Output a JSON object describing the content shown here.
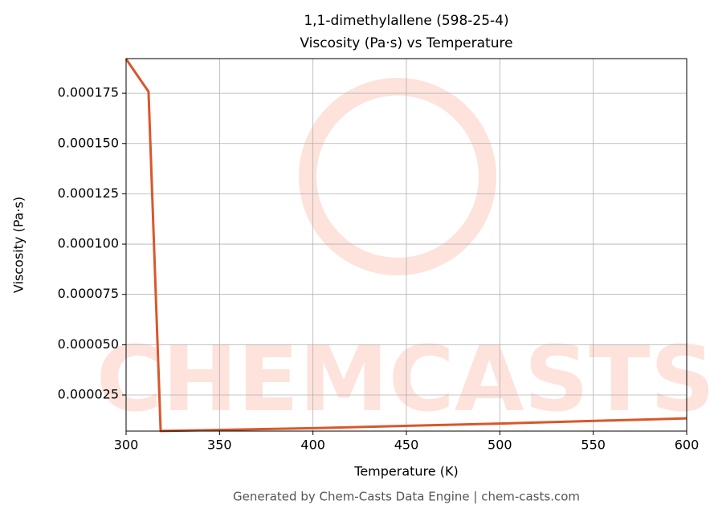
{
  "chart_data": {
    "type": "line",
    "title": "1,1-dimethylallene (598-25-4)",
    "subtitle": "Viscosity (Pa·s) vs Temperature",
    "x_label": "Temperature (K)",
    "y_label": "Viscosity (Pa·s)",
    "watermark": "CHEMCASTS",
    "footer": "Generated by Chem-Casts Data Engine | chem-casts.com",
    "x": [
      300,
      312,
      318.5,
      400,
      500,
      600
    ],
    "series": [
      {
        "name": "Viscosity",
        "color": "#d9572b",
        "values": [
          0.000192,
          0.0001758,
          7.1e-06,
          8.5e-06,
          1.08e-05,
          1.34e-05
        ]
      }
    ],
    "xlim": [
      300,
      600
    ],
    "ylim": [
      7.05e-06,
      0.0001922
    ],
    "xticks": [
      300,
      350,
      400,
      450,
      500,
      550,
      600
    ],
    "yticks": [
      2.5e-05,
      {
        "value": 5e-05,
        "label": "0.000050"
      },
      7.5e-05,
      {
        "value": 0.0001,
        "label": "0.000100"
      },
      0.000125,
      {
        "value": 0.00015,
        "label": "0.000150"
      },
      0.000175
    ],
    "grid": true
  }
}
